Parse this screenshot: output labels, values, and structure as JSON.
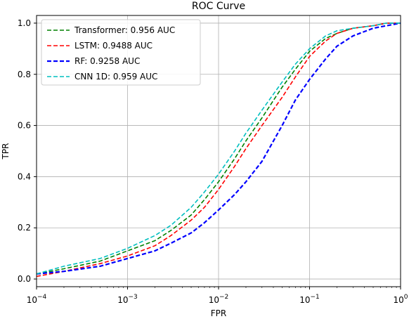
{
  "chart_data": {
    "type": "line",
    "title": "ROC Curve",
    "xlabel": "FPR",
    "ylabel": "TPR",
    "xscale": "log",
    "xlim": [
      0.0001,
      1
    ],
    "ylim": [
      -0.03,
      1.03
    ],
    "grid": true,
    "legend_position": "top-left",
    "x_ticks": [
      {
        "value": 0.0001,
        "base": "10",
        "exp": "−4"
      },
      {
        "value": 0.001,
        "base": "10",
        "exp": "−3"
      },
      {
        "value": 0.01,
        "base": "10",
        "exp": "−2"
      },
      {
        "value": 0.1,
        "base": "10",
        "exp": "−1"
      },
      {
        "value": 1,
        "base": "10",
        "exp": "0"
      }
    ],
    "y_ticks": [
      {
        "value": 0.0,
        "label": "0.0"
      },
      {
        "value": 0.2,
        "label": "0.2"
      },
      {
        "value": 0.4,
        "label": "0.4"
      },
      {
        "value": 0.6,
        "label": "0.6"
      },
      {
        "value": 0.8,
        "label": "0.8"
      },
      {
        "value": 1.0,
        "label": "1.0"
      }
    ],
    "series": [
      {
        "name": "Transformer: 0.956 AUC",
        "color": "#008000",
        "style": "dashed",
        "x": [
          0.0001,
          0.0002,
          0.0005,
          0.001,
          0.002,
          0.003,
          0.005,
          0.007,
          0.01,
          0.015,
          0.02,
          0.03,
          0.05,
          0.07,
          0.1,
          0.15,
          0.2,
          0.3,
          0.5,
          0.7,
          1
        ],
        "y": [
          0.02,
          0.04,
          0.07,
          0.11,
          0.15,
          0.19,
          0.25,
          0.31,
          0.38,
          0.47,
          0.54,
          0.63,
          0.75,
          0.82,
          0.89,
          0.94,
          0.96,
          0.98,
          0.99,
          1.0,
          1.0
        ]
      },
      {
        "name": "LSTM: 0.9488 AUC",
        "color": "#ff0000",
        "style": "dashed",
        "x": [
          0.0001,
          0.0002,
          0.0005,
          0.001,
          0.002,
          0.003,
          0.005,
          0.007,
          0.01,
          0.015,
          0.02,
          0.03,
          0.05,
          0.07,
          0.1,
          0.15,
          0.2,
          0.3,
          0.5,
          0.7,
          1
        ],
        "y": [
          0.01,
          0.03,
          0.06,
          0.09,
          0.13,
          0.17,
          0.23,
          0.28,
          0.35,
          0.44,
          0.51,
          0.6,
          0.71,
          0.79,
          0.87,
          0.93,
          0.96,
          0.98,
          0.99,
          1.0,
          1.0
        ]
      },
      {
        "name": "RF: 0.9258 AUC",
        "color": "#0000ff",
        "style": "dashed-bold",
        "x": [
          0.0001,
          0.0002,
          0.0005,
          0.001,
          0.002,
          0.003,
          0.005,
          0.007,
          0.01,
          0.015,
          0.02,
          0.03,
          0.05,
          0.07,
          0.1,
          0.15,
          0.2,
          0.3,
          0.5,
          0.7,
          1
        ],
        "y": [
          0.02,
          0.03,
          0.05,
          0.08,
          0.11,
          0.14,
          0.18,
          0.22,
          0.27,
          0.33,
          0.38,
          0.46,
          0.6,
          0.7,
          0.78,
          0.86,
          0.91,
          0.95,
          0.98,
          0.99,
          1.0
        ]
      },
      {
        "name": "CNN 1D: 0.959 AUC",
        "color": "#00bfbf",
        "style": "dashed",
        "x": [
          0.0001,
          0.0002,
          0.0005,
          0.001,
          0.002,
          0.003,
          0.005,
          0.007,
          0.01,
          0.015,
          0.02,
          0.03,
          0.05,
          0.07,
          0.1,
          0.15,
          0.2,
          0.3,
          0.5,
          0.7,
          1
        ],
        "y": [
          0.02,
          0.05,
          0.08,
          0.12,
          0.17,
          0.21,
          0.28,
          0.34,
          0.41,
          0.5,
          0.57,
          0.66,
          0.77,
          0.84,
          0.9,
          0.95,
          0.97,
          0.98,
          0.99,
          1.0,
          1.0
        ]
      }
    ]
  }
}
